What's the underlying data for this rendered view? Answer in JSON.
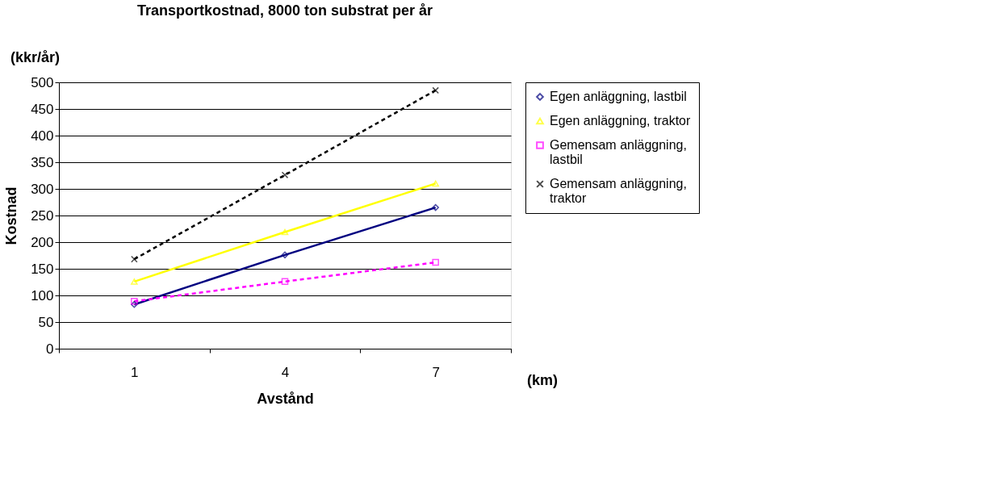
{
  "chart_data": {
    "type": "line",
    "title": "Transportkostnad, 8000 ton substrat per år",
    "xlabel": "Avstånd",
    "ylabel": "Kostnad",
    "annotations": [
      "(kkr/år)",
      "(km)"
    ],
    "categories": [
      "1",
      "4",
      "7"
    ],
    "ylim": [
      0,
      500
    ],
    "yticks": [
      0,
      50,
      100,
      150,
      200,
      250,
      300,
      350,
      400,
      450,
      500
    ],
    "grid": "y",
    "legend": "right",
    "series": [
      {
        "name": "Egen anläggning, lastbil",
        "color": "#000080",
        "marker": "diamond",
        "line_style": "solid",
        "values": [
          83,
          176,
          265
        ]
      },
      {
        "name": "Egen anläggning, traktor",
        "color": "#ffff00",
        "marker": "triangle",
        "line_style": "solid",
        "values": [
          126,
          219,
          310
        ]
      },
      {
        "name": "Gemensam anläggning, lastbil",
        "color": "#ff00ff",
        "marker": "square",
        "line_style": "dashed",
        "values": [
          89,
          126,
          162
        ]
      },
      {
        "name": "Gemensam anläggning, traktor",
        "color": "#000000",
        "marker": "cross",
        "line_style": "dashed",
        "values": [
          168,
          326,
          485
        ]
      }
    ]
  }
}
